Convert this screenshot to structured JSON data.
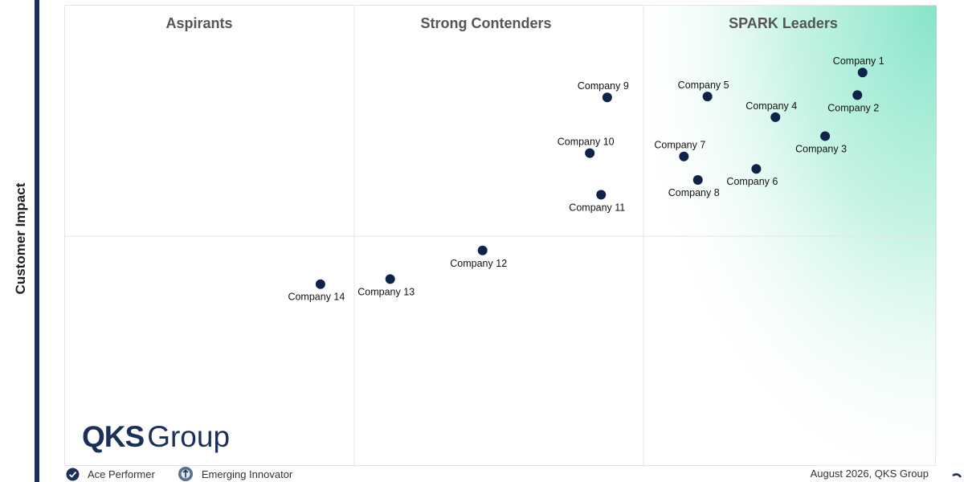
{
  "chart_data": {
    "type": "scatter",
    "title": "",
    "xlabel": "",
    "ylabel": "Customer Impact",
    "xlim": [
      0,
      100
    ],
    "ylim": [
      0,
      100
    ],
    "grid": true,
    "quadrants": [
      {
        "label": "Aspirants"
      },
      {
        "label": "Strong Contenders"
      },
      {
        "label": "SPARK Leaders"
      }
    ],
    "points": [
      {
        "label": "Company 1",
        "x": 91.5,
        "y": 85.5
      },
      {
        "label": "Company 2",
        "x": 90.9,
        "y": 80.6
      },
      {
        "label": "Company 3",
        "x": 87.2,
        "y": 71.7
      },
      {
        "label": "Company 4",
        "x": 81.5,
        "y": 75.8
      },
      {
        "label": "Company 5",
        "x": 73.7,
        "y": 80.3
      },
      {
        "label": "Company 6",
        "x": 79.3,
        "y": 64.6
      },
      {
        "label": "Company 7",
        "x": 71.0,
        "y": 67.3
      },
      {
        "label": "Company 8",
        "x": 72.6,
        "y": 62.2
      },
      {
        "label": "Company 9",
        "x": 62.2,
        "y": 80.1
      },
      {
        "label": "Company 10",
        "x": 60.2,
        "y": 68.0
      },
      {
        "label": "Company 11",
        "x": 61.5,
        "y": 59.0
      },
      {
        "label": "Company 12",
        "x": 47.9,
        "y": 46.9
      },
      {
        "label": "Company 13",
        "x": 37.3,
        "y": 40.7
      },
      {
        "label": "Company 14",
        "x": 29.3,
        "y": 39.6
      }
    ]
  },
  "brand": {
    "strong": "QKS",
    "light": "Group"
  },
  "legend": [
    {
      "label": "Ace Performer",
      "icon": "ace-performer-icon"
    },
    {
      "label": "Emerging Innovator",
      "icon": "emerging-innovator-icon"
    }
  ],
  "footer_note": "August 2026, QKS Group",
  "colors": {
    "point": "#0f2348",
    "frame_bar": "#1b2f5a",
    "leader_gradient": "#7ee3c6",
    "grid": "#e4e4e4",
    "quadrant_title": "#555555"
  }
}
